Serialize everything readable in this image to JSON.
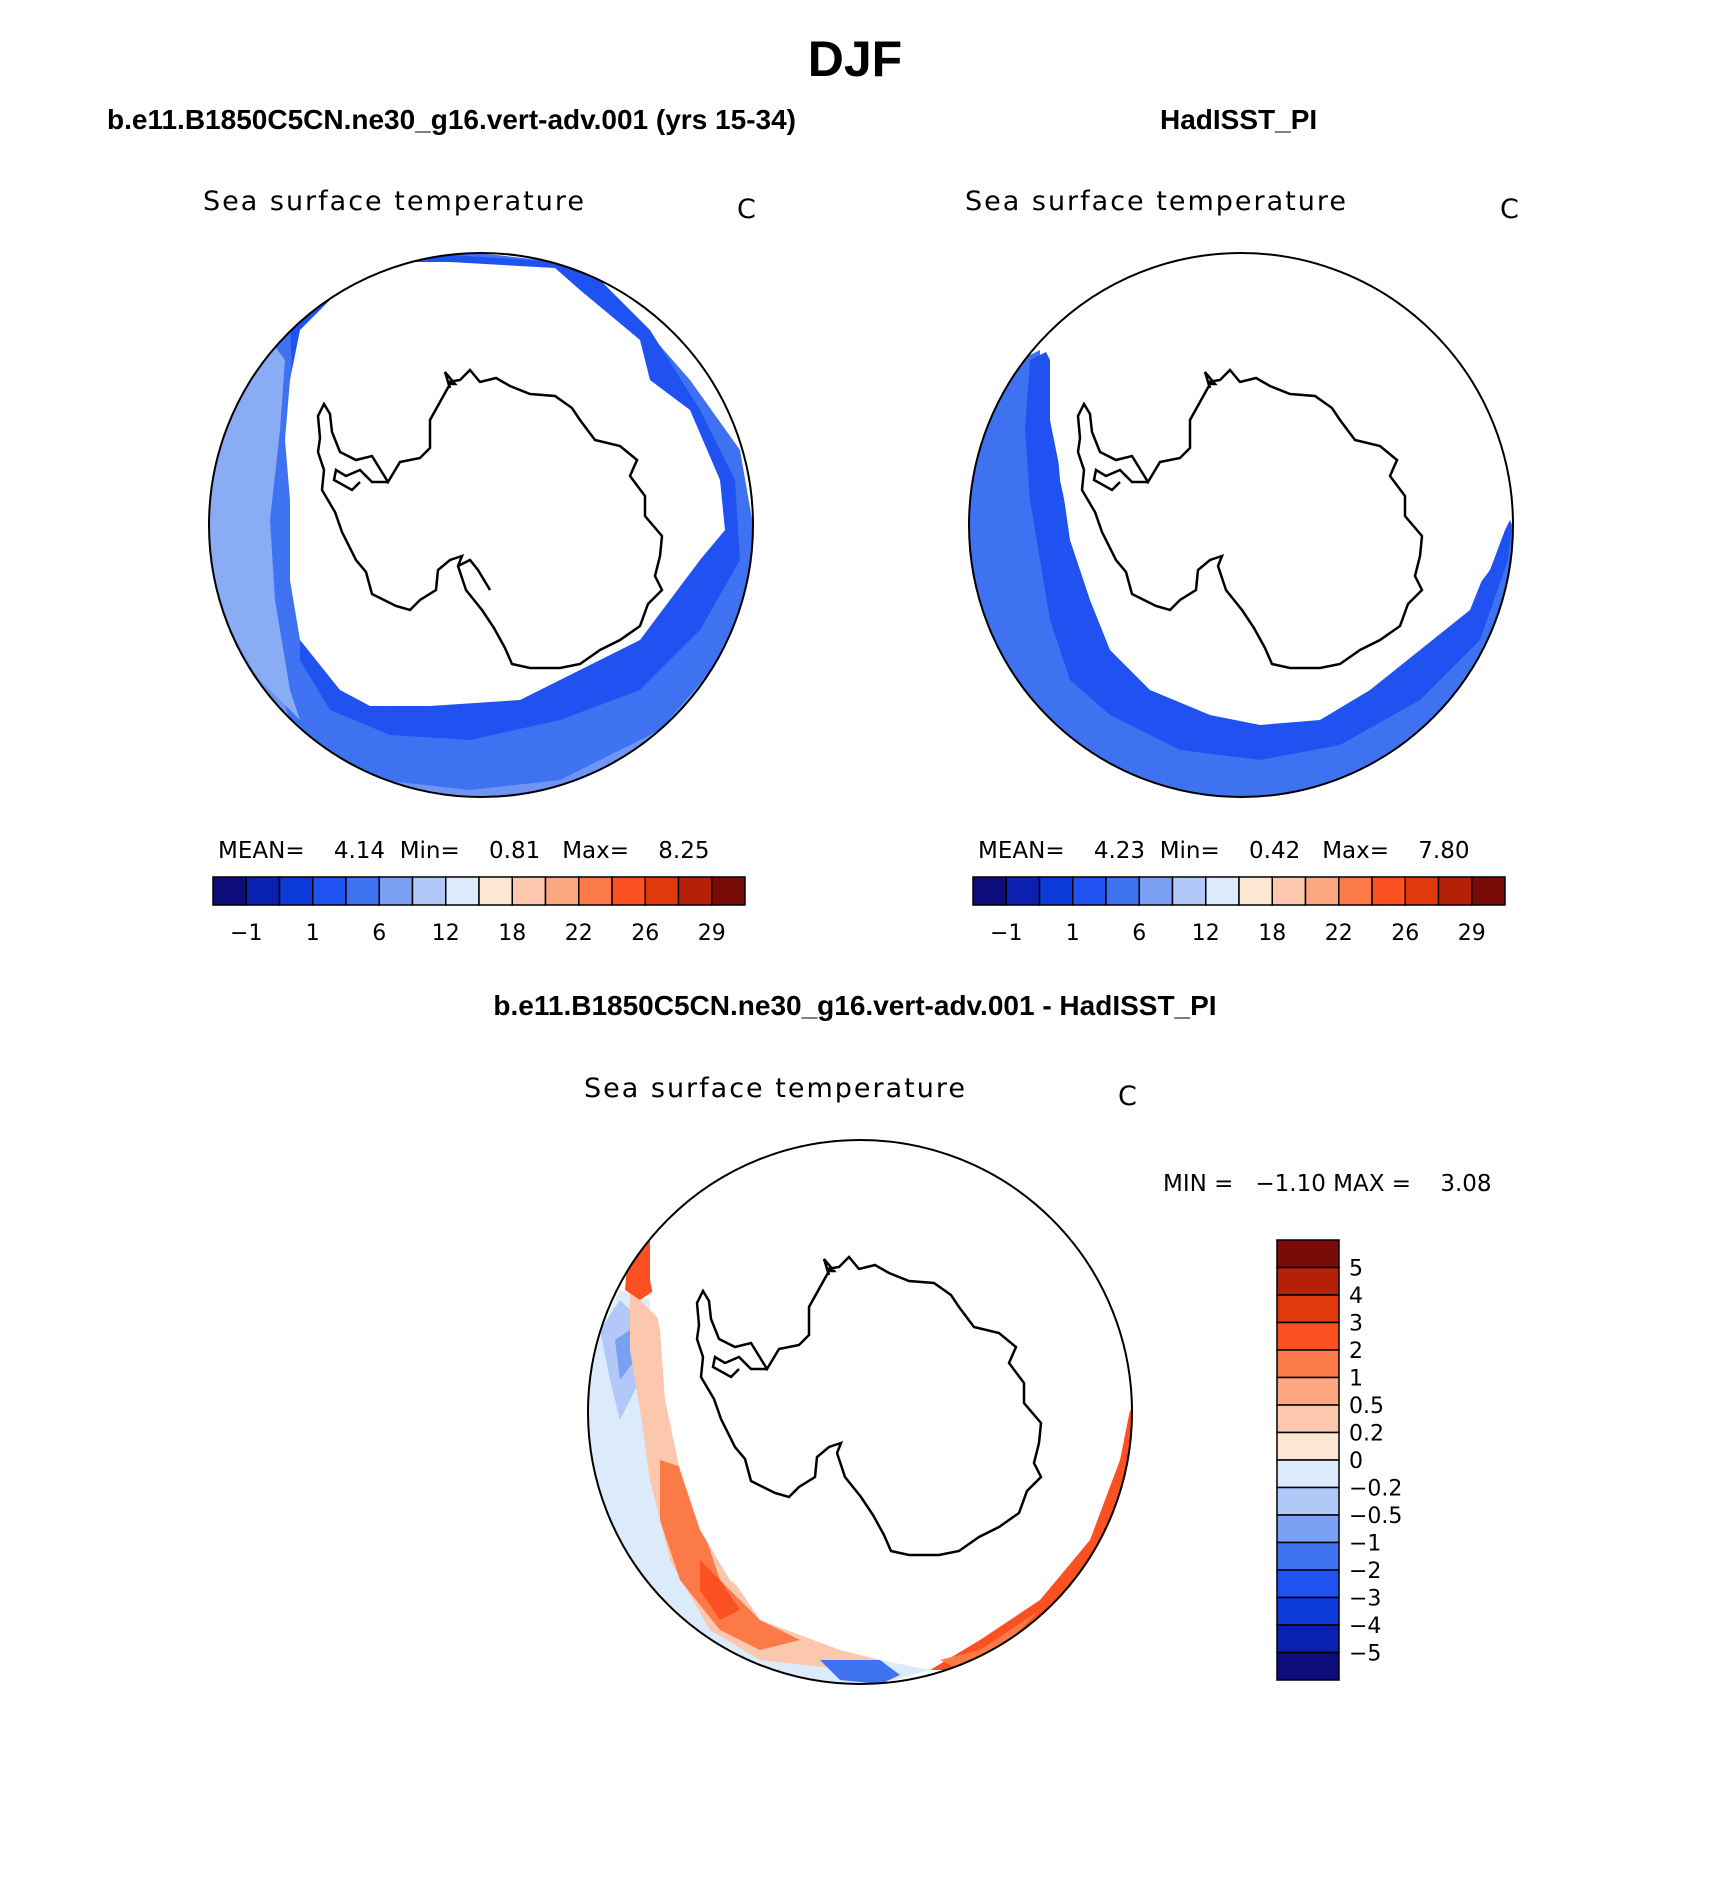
{
  "title": "DJF",
  "panels": [
    {
      "heading": "b.e11.B1850C5CN.ne30_g16.vert-adv.001 (yrs 15-34)",
      "variable": "Sea surface temperature",
      "units": "C",
      "stats": {
        "mean_label": "MEAN=",
        "mean": "4.14",
        "min_label": "Min=",
        "min": "0.81",
        "max_label": "Max=",
        "max": "8.25"
      }
    },
    {
      "heading": "HadISST_PI",
      "variable": "Sea surface temperature",
      "units": "C",
      "stats": {
        "mean_label": "MEAN=",
        "mean": "4.23",
        "min_label": "Min=",
        "min": "0.42",
        "max_label": "Max=",
        "max": "7.80"
      }
    },
    {
      "heading": "b.e11.B1850C5CN.ne30_g16.vert-adv.001 - HadISST_PI",
      "variable": "Sea surface temperature",
      "units": "C",
      "stats": {
        "min_label": "MIN =",
        "min": "−1.10",
        "max_label": "MAX =",
        "max": "3.08"
      }
    }
  ],
  "colorbar_abs": {
    "colors": [
      "#0c0c7a",
      "#0a20b0",
      "#0c3ad8",
      "#1f52f0",
      "#3f72f0",
      "#7aa0f4",
      "#b2c8f8",
      "#dcebfb",
      "#fde6d4",
      "#fcc7ad",
      "#fba882",
      "#fc7a48",
      "#fb5020",
      "#e03a0c",
      "#b52008",
      "#7a0c08"
    ],
    "tick_labels": [
      "−1",
      "1",
      "6",
      "12",
      "18",
      "22",
      "26",
      "29"
    ]
  },
  "colorbar_diff": {
    "colors": [
      "#7a0c08",
      "#b52008",
      "#e03a0c",
      "#fb5020",
      "#fc7a48",
      "#fba882",
      "#fcc7ad",
      "#fde6d4",
      "#dcebfb",
      "#b2c8f8",
      "#7aa0f4",
      "#3f72f0",
      "#1f52f0",
      "#0c3ad8",
      "#0a20b0",
      "#0c0c7a"
    ],
    "tick_labels": [
      "5",
      "4",
      "3",
      "2",
      "1",
      "0.5",
      "0.2",
      "0",
      "−0.2",
      "−0.5",
      "−1",
      "−2",
      "−3",
      "−4",
      "−5"
    ]
  }
}
